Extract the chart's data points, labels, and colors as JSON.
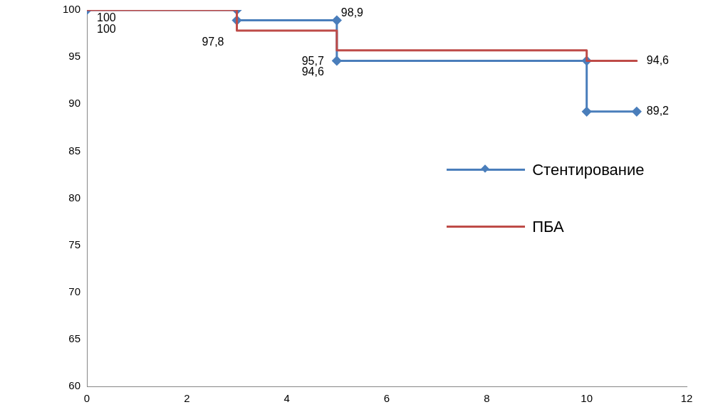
{
  "chart_data": {
    "type": "line",
    "xlim": [
      0,
      12
    ],
    "xticks": [
      0,
      2,
      4,
      6,
      8,
      10,
      12
    ],
    "ylim": [
      60,
      100
    ],
    "yticks": [
      60,
      65,
      70,
      75,
      80,
      85,
      90,
      95,
      100
    ],
    "grid": false,
    "legend": "right",
    "series": [
      {
        "name": "Стентирование",
        "color": "#4a7ebb",
        "marker": "diamond",
        "x": [
          0,
          3,
          3,
          5,
          5,
          10,
          10,
          11
        ],
        "values": [
          100,
          100,
          98.9,
          98.9,
          94.6,
          94.6,
          89.2,
          89.2
        ],
        "value_labels": [
          "100",
          null,
          null,
          "98,9",
          "94,6",
          null,
          null,
          "89,2"
        ]
      },
      {
        "name": "ПБА",
        "color": "#be4b48",
        "marker": "none",
        "x": [
          0,
          3,
          3,
          5,
          5,
          10,
          10,
          11
        ],
        "values": [
          100,
          100,
          97.8,
          97.8,
          95.7,
          95.7,
          94.6,
          94.6
        ],
        "value_labels": [
          "100",
          null,
          "97,8",
          null,
          "95,7",
          null,
          null,
          "94,6"
        ]
      }
    ]
  }
}
